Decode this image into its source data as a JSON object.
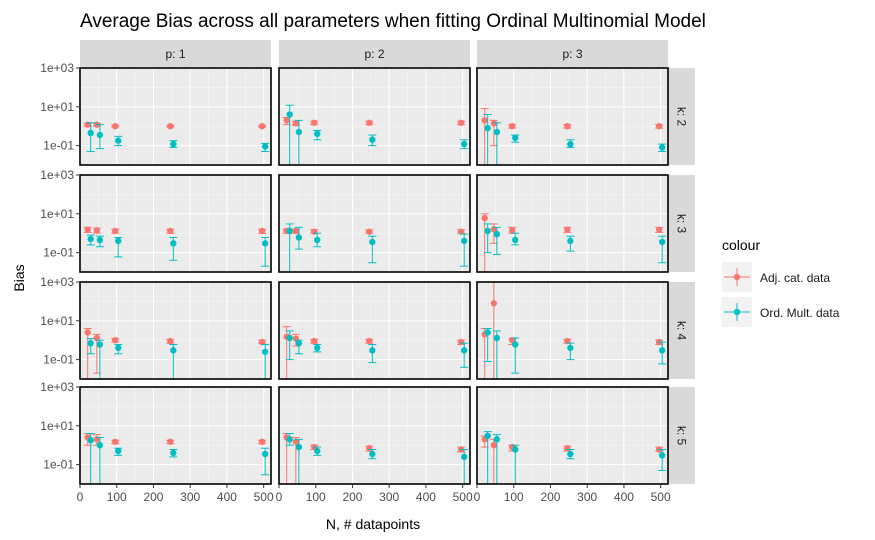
{
  "chart_data": {
    "type": "scatter",
    "title": "Average Bias across all parameters when fitting Ordinal Multinomial Model",
    "xlabel": "N, # datapoints",
    "ylabel": "Bias",
    "y_scale": "log10",
    "xlim": [
      0,
      520
    ],
    "ylim": [
      0.01,
      1000
    ],
    "x_ticks": [
      0,
      100,
      200,
      300,
      400,
      500
    ],
    "y_ticks": [
      {
        "value": 1000,
        "label": "1e+03"
      },
      {
        "value": 10,
        "label": "1e+01"
      },
      {
        "value": 0.1,
        "label": "1e-01"
      }
    ],
    "grid": true,
    "legend": {
      "title": "colour",
      "position": "right",
      "entries": [
        {
          "name": "Adj. cat. data",
          "color": "#F8766D"
        },
        {
          "name": "Ord. Mult. data",
          "color": "#00BFC4"
        }
      ]
    },
    "facet_cols": [
      "p: 1",
      "p: 2",
      "p: 3"
    ],
    "facet_rows": [
      "k: 2",
      "k: 3",
      "k: 4",
      "k: 5"
    ],
    "x": [
      25,
      50,
      100,
      250,
      500
    ],
    "panels": [
      {
        "row": 0,
        "col": 0,
        "series": [
          {
            "name": "Adj. cat. data",
            "y": [
              1.2,
              1.2,
              1.0,
              1.0,
              1.0
            ],
            "lo": [
              1.0,
              1.0,
              0.9,
              0.9,
              0.9
            ],
            "hi": [
              1.4,
              1.4,
              1.1,
              1.1,
              1.1
            ]
          },
          {
            "name": "Ord. Mult. data",
            "y": [
              0.45,
              0.35,
              0.18,
              0.12,
              0.09
            ],
            "lo": [
              0.05,
              0.07,
              0.1,
              0.08,
              0.05
            ],
            "hi": [
              1.5,
              1.2,
              0.3,
              0.18,
              0.13
            ]
          }
        ]
      },
      {
        "row": 0,
        "col": 1,
        "series": [
          {
            "name": "Adj. cat. data",
            "y": [
              2.0,
              1.4,
              1.5,
              1.5,
              1.5
            ],
            "lo": [
              1.2,
              1.1,
              1.2,
              1.2,
              1.2
            ],
            "hi": [
              2.8,
              1.8,
              1.8,
              1.8,
              1.8
            ]
          },
          {
            "name": "Ord. Mult. data",
            "y": [
              4.0,
              0.5,
              0.4,
              0.2,
              0.12
            ],
            "lo": [
              0.01,
              0.01,
              0.2,
              0.1,
              0.07
            ],
            "hi": [
              12,
              2.0,
              0.6,
              0.35,
              0.2
            ]
          }
        ]
      },
      {
        "row": 0,
        "col": 2,
        "series": [
          {
            "name": "Adj. cat. data",
            "y": [
              2.0,
              1.4,
              1.0,
              1.0,
              1.0
            ],
            "lo": [
              0.01,
              0.1,
              0.8,
              0.8,
              0.8
            ],
            "hi": [
              8,
              2,
              1.2,
              1.2,
              1.2
            ]
          },
          {
            "name": "Ord. Mult. data",
            "y": [
              0.8,
              0.5,
              0.25,
              0.12,
              0.08
            ],
            "lo": [
              0.01,
              0.01,
              0.15,
              0.08,
              0.05
            ],
            "hi": [
              4,
              1.5,
              0.35,
              0.2,
              0.12
            ]
          }
        ]
      },
      {
        "row": 1,
        "col": 0,
        "series": [
          {
            "name": "Adj. cat. data",
            "y": [
              1.5,
              1.4,
              1.3,
              1.3,
              1.3
            ],
            "lo": [
              1.1,
              1.0,
              1.0,
              1.0,
              1.0
            ],
            "hi": [
              2.0,
              1.8,
              1.6,
              1.6,
              1.6
            ]
          },
          {
            "name": "Ord. Mult. data",
            "y": [
              0.5,
              0.45,
              0.4,
              0.3,
              0.3
            ],
            "lo": [
              0.25,
              0.2,
              0.06,
              0.04,
              0.02
            ],
            "hi": [
              0.8,
              0.7,
              0.6,
              0.6,
              0.6
            ]
          }
        ]
      },
      {
        "row": 1,
        "col": 1,
        "series": [
          {
            "name": "Adj. cat. data",
            "y": [
              1.3,
              1.3,
              1.2,
              1.2,
              1.2
            ],
            "lo": [
              1.0,
              1.0,
              1.0,
              1.0,
              1.0
            ],
            "hi": [
              1.6,
              1.6,
              1.5,
              1.5,
              1.5
            ]
          },
          {
            "name": "Ord. Mult. data",
            "y": [
              1.3,
              0.6,
              0.45,
              0.35,
              0.4
            ],
            "lo": [
              0.01,
              0.15,
              0.2,
              0.03,
              0.02
            ],
            "hi": [
              3,
              2,
              1.0,
              0.7,
              0.9
            ]
          }
        ]
      },
      {
        "row": 1,
        "col": 2,
        "series": [
          {
            "name": "Adj. cat. data",
            "y": [
              6.0,
              1.6,
              1.4,
              1.5,
              1.5
            ],
            "lo": [
              0.01,
              0.3,
              1.0,
              1.1,
              1.1
            ],
            "hi": [
              10,
              3,
              2,
              2,
              2
            ]
          },
          {
            "name": "Ord. Mult. data",
            "y": [
              1.3,
              0.9,
              0.45,
              0.4,
              0.35
            ],
            "lo": [
              0.1,
              0.08,
              0.25,
              0.12,
              0.03
            ],
            "hi": [
              3,
              2,
              1,
              0.7,
              0.7
            ]
          }
        ]
      },
      {
        "row": 2,
        "col": 0,
        "series": [
          {
            "name": "Adj. cat. data",
            "y": [
              2.5,
              1.3,
              1.0,
              0.9,
              0.8
            ],
            "lo": [
              0.01,
              0.02,
              0.8,
              0.7,
              0.7
            ],
            "hi": [
              4,
              2,
              1.2,
              1.1,
              1.0
            ]
          },
          {
            "name": "Ord. Mult. data",
            "y": [
              0.7,
              0.6,
              0.4,
              0.3,
              0.25
            ],
            "lo": [
              0.2,
              0.01,
              0.2,
              0.01,
              0.01
            ],
            "hi": [
              1.2,
              1.0,
              0.6,
              0.6,
              0.6
            ]
          }
        ]
      },
      {
        "row": 2,
        "col": 1,
        "series": [
          {
            "name": "Adj. cat. data",
            "y": [
              1.5,
              1.2,
              0.9,
              0.9,
              0.8
            ],
            "lo": [
              0.01,
              0.5,
              0.7,
              0.7,
              0.6
            ],
            "hi": [
              5,
              2,
              1.1,
              1.1,
              1.0
            ]
          },
          {
            "name": "Ord. Mult. data",
            "y": [
              1.3,
              0.7,
              0.4,
              0.3,
              0.3
            ],
            "lo": [
              0.1,
              0.2,
              0.25,
              0.07,
              0.04
            ],
            "hi": [
              3,
              1.0,
              0.6,
              0.6,
              0.7
            ]
          }
        ]
      },
      {
        "row": 2,
        "col": 2,
        "series": [
          {
            "name": "Adj. cat. data",
            "y": [
              2.0,
              80,
              1.0,
              0.9,
              0.8
            ],
            "lo": [
              0.01,
              0.01,
              0.6,
              0.7,
              0.6
            ],
            "hi": [
              4,
              1000,
              1.2,
              1.1,
              1.0
            ]
          },
          {
            "name": "Ord. Mult. data",
            "y": [
              2.5,
              1.3,
              0.6,
              0.4,
              0.3
            ],
            "lo": [
              0.08,
              0.01,
              0.02,
              0.1,
              0.06
            ],
            "hi": [
              4,
              3,
              1.3,
              0.7,
              0.8
            ]
          }
        ]
      },
      {
        "row": 3,
        "col": 0,
        "series": [
          {
            "name": "Adj. cat. data",
            "y": [
              2.5,
              2.0,
              1.5,
              1.5,
              1.5
            ],
            "lo": [
              1.0,
              1.0,
              1.2,
              1.2,
              1.2
            ],
            "hi": [
              4,
              3.5,
              1.8,
              1.8,
              1.8
            ]
          },
          {
            "name": "Ord. Mult. data",
            "y": [
              1.8,
              1.0,
              0.5,
              0.4,
              0.35
            ],
            "lo": [
              0.01,
              0.01,
              0.3,
              0.25,
              0.03
            ],
            "hi": [
              4,
              2.5,
              0.7,
              0.6,
              0.7
            ]
          }
        ]
      },
      {
        "row": 3,
        "col": 1,
        "series": [
          {
            "name": "Adj. cat. data",
            "y": [
              2.5,
              1.5,
              0.8,
              0.7,
              0.6
            ],
            "lo": [
              0.01,
              0.01,
              0.6,
              0.5,
              0.45
            ],
            "hi": [
              4,
              2.5,
              1.0,
              0.9,
              0.8
            ]
          },
          {
            "name": "Ord. Mult. data",
            "y": [
              2.0,
              0.8,
              0.5,
              0.35,
              0.25
            ],
            "lo": [
              1.0,
              0.01,
              0.3,
              0.2,
              0.01
            ],
            "hi": [
              4,
              2,
              0.8,
              0.6,
              0.6
            ]
          }
        ]
      },
      {
        "row": 3,
        "col": 2,
        "series": [
          {
            "name": "Adj. cat. data",
            "y": [
              2.0,
              1.0,
              0.8,
              0.7,
              0.6
            ],
            "lo": [
              0.8,
              0.01,
              0.5,
              0.5,
              0.5
            ],
            "hi": [
              3,
              2,
              1.0,
              0.9,
              0.8
            ]
          },
          {
            "name": "Ord. Mult. data",
            "y": [
              3.0,
              2.0,
              0.6,
              0.35,
              0.3
            ],
            "lo": [
              0.01,
              0.01,
              0.01,
              0.2,
              0.05
            ],
            "hi": [
              5,
              3.5,
              1.0,
              0.6,
              0.6
            ]
          }
        ]
      }
    ]
  }
}
